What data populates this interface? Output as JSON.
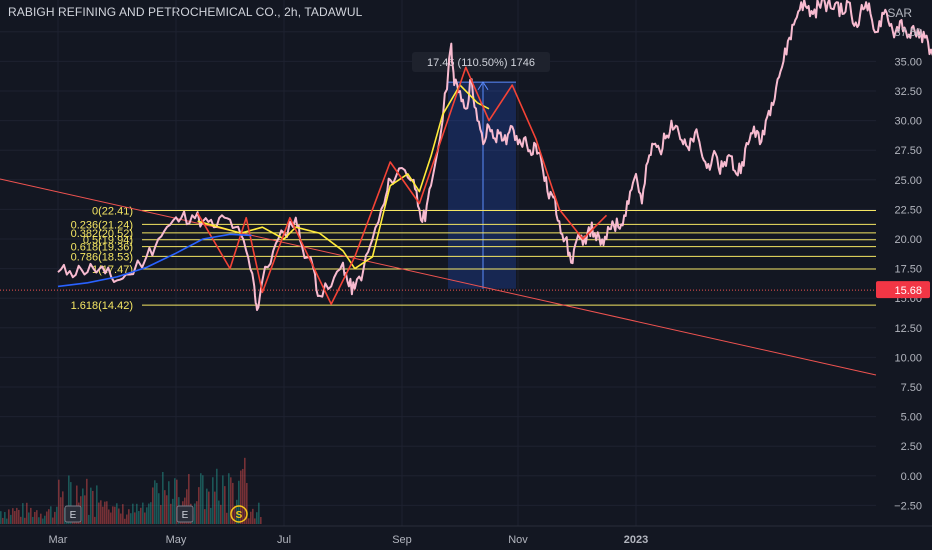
{
  "header": {
    "title": "RABIGH REFINING AND PETROCHEMICAL CO., 2h, TADAWUL",
    "currency": "SAR"
  },
  "chart_data": {
    "type": "line",
    "title": "RABIGH REFINING AND PETROCHEMICAL CO., 2h, TADAWUL",
    "ylabel": "SAR",
    "ylim": [
      -4.0,
      40.0
    ],
    "y_ticks": [
      "37.50",
      "35.00",
      "32.50",
      "30.00",
      "27.50",
      "25.00",
      "22.50",
      "20.00",
      "17.50",
      "15.00",
      "12.50",
      "10.00",
      "7.50",
      "5.00",
      "2.50",
      "0.00",
      "−2.50"
    ],
    "x_ticks": [
      "Mar",
      "May",
      "Jul",
      "Sep",
      "Nov",
      "2023"
    ],
    "last_price": "15.68",
    "measure_label": "17.46 (110.50%) 1746",
    "fib_levels": [
      {
        "label": "0(22.41)",
        "value": 22.41
      },
      {
        "label": "0.236(21.24)",
        "value": 21.24
      },
      {
        "label": "0.382(20.52)",
        "value": 20.52
      },
      {
        "label": "0.5(19.94)",
        "value": 19.94
      },
      {
        "label": "0.618(19.36)",
        "value": 19.36
      },
      {
        "label": "0.786(18.53)",
        "value": 18.53
      },
      {
        "label": "1(17.47)",
        "value": 17.47
      },
      {
        "label": "1.618(14.42)",
        "value": 14.42
      }
    ],
    "events": [
      "E",
      "E",
      "S"
    ],
    "series": [
      {
        "color": "#f8bbd0",
        "points": [
          [
            0.0,
            17.2
          ],
          [
            0.2,
            17.3
          ],
          [
            0.4,
            17.4
          ],
          [
            0.6,
            17.5
          ],
          [
            0.8,
            17.1
          ],
          [
            1.0,
            16.5
          ],
          [
            1.2,
            17.0
          ],
          [
            1.5,
            18.5
          ],
          [
            1.7,
            20.0
          ],
          [
            1.9,
            21.2
          ],
          [
            2.1,
            21.8
          ],
          [
            2.3,
            22.0
          ],
          [
            2.5,
            21.5
          ],
          [
            2.7,
            21.0
          ],
          [
            2.9,
            21.8
          ],
          [
            3.1,
            21.0
          ],
          [
            3.3,
            19.0
          ],
          [
            3.45,
            16.0
          ],
          [
            3.5,
            14.0
          ],
          [
            3.6,
            16.5
          ],
          [
            3.8,
            19.0
          ],
          [
            4.0,
            20.5
          ],
          [
            4.2,
            21.8
          ],
          [
            4.3,
            19.5
          ],
          [
            4.5,
            17.5
          ],
          [
            4.6,
            15.2
          ],
          [
            4.8,
            16.0
          ],
          [
            5.0,
            18.0
          ],
          [
            5.1,
            16.0
          ],
          [
            5.2,
            15.8
          ],
          [
            5.35,
            17.5
          ],
          [
            5.5,
            20.0
          ],
          [
            5.7,
            23.0
          ],
          [
            5.8,
            25.0
          ],
          [
            6.0,
            26.0
          ],
          [
            6.2,
            25.0
          ],
          [
            6.3,
            22.5
          ],
          [
            6.4,
            21.5
          ],
          [
            6.5,
            24.5
          ],
          [
            6.7,
            30.0
          ],
          [
            6.85,
            36.5
          ],
          [
            6.9,
            33.0
          ],
          [
            7.0,
            32.5
          ],
          [
            7.1,
            31.0
          ],
          [
            7.2,
            33.5
          ],
          [
            7.3,
            30.0
          ],
          [
            7.4,
            28.0
          ],
          [
            7.5,
            29.5
          ],
          [
            7.6,
            28.5
          ],
          [
            7.7,
            29.0
          ],
          [
            7.8,
            28.0
          ],
          [
            7.9,
            29.5
          ],
          [
            8.0,
            28.0
          ],
          [
            8.1,
            28.5
          ],
          [
            8.2,
            27.5
          ],
          [
            8.3,
            28.0
          ],
          [
            8.4,
            26.5
          ],
          [
            8.5,
            24.0
          ],
          [
            8.6,
            23.5
          ],
          [
            8.7,
            21.5
          ],
          [
            8.8,
            20.0
          ],
          [
            8.9,
            18.0
          ],
          [
            9.0,
            20.0
          ],
          [
            9.1,
            19.5
          ],
          [
            9.2,
            21.0
          ],
          [
            9.3,
            20.5
          ],
          [
            9.4,
            19.5
          ],
          [
            9.5,
            20.0
          ],
          [
            9.6,
            21.5
          ],
          [
            9.7,
            21.0
          ],
          [
            9.8,
            22.0
          ],
          [
            9.9,
            24.0
          ],
          [
            10.0,
            25.5
          ],
          [
            10.1,
            23.0
          ],
          [
            10.2,
            26.5
          ],
          [
            10.3,
            28.0
          ],
          [
            10.4,
            27.5
          ],
          [
            10.5,
            28.5
          ],
          [
            10.6,
            30.0
          ],
          [
            10.7,
            29.5
          ],
          [
            10.8,
            28.0
          ],
          [
            10.9,
            27.5
          ],
          [
            11.0,
            29.0
          ],
          [
            11.1,
            27.5
          ],
          [
            11.2,
            26.0
          ],
          [
            11.3,
            27.0
          ],
          [
            11.4,
            26.0
          ],
          [
            11.5,
            26.5
          ],
          [
            11.6,
            27.0
          ],
          [
            11.7,
            25.5
          ],
          [
            11.8,
            26.5
          ],
          [
            11.9,
            28.0
          ],
          [
            12.0,
            29.5
          ],
          [
            12.1,
            28.0
          ],
          [
            12.2,
            30.0
          ],
          [
            12.3,
            31.5
          ],
          [
            12.4,
            33.5
          ],
          [
            12.5,
            35.0
          ],
          [
            12.6,
            37.0
          ],
          [
            12.7,
            38.5
          ],
          [
            12.8,
            40.0
          ],
          [
            12.9,
            39.5
          ],
          [
            13.0,
            39.0
          ],
          [
            13.1,
            39.8
          ],
          [
            13.2,
            40.0
          ],
          [
            13.3,
            39.5
          ],
          [
            13.4,
            40.0
          ],
          [
            13.5,
            39.0
          ],
          [
            13.6,
            40.0
          ],
          [
            13.7,
            38.0
          ],
          [
            13.8,
            39.0
          ],
          [
            13.9,
            40.0
          ],
          [
            14.0,
            38.5
          ],
          [
            14.1,
            37.5
          ],
          [
            14.2,
            39.0
          ],
          [
            14.3,
            38.0
          ],
          [
            14.4,
            37.5
          ],
          [
            14.5,
            38.5
          ],
          [
            14.6,
            37.0
          ],
          [
            14.7,
            38.0
          ],
          [
            14.8,
            37.0
          ],
          [
            14.9,
            37.0
          ],
          [
            15.0,
            36.0
          ],
          [
            15.1,
            35.5
          ],
          [
            15.2,
            34.5
          ],
          [
            15.25,
            33.0
          ],
          [
            15.3,
            35.0
          ],
          [
            15.35,
            34.8
          ]
        ]
      },
      {
        "color": "#ffeb3b",
        "points": [
          [
            2.4,
            21.5
          ],
          [
            2.8,
            21.0
          ],
          [
            3.2,
            20.5
          ],
          [
            3.6,
            21.0
          ],
          [
            4.0,
            20.0
          ],
          [
            4.2,
            21.0
          ],
          [
            4.6,
            20.5
          ],
          [
            5.0,
            19.0
          ],
          [
            5.2,
            17.5
          ],
          [
            5.5,
            18.5
          ],
          [
            5.8,
            24.5
          ],
          [
            6.1,
            25.5
          ],
          [
            6.3,
            24.0
          ],
          [
            6.5,
            27.0
          ],
          [
            6.7,
            30.5
          ],
          [
            7.0,
            33.0
          ],
          [
            7.3,
            31.5
          ],
          [
            7.5,
            31.0
          ]
        ]
      },
      {
        "color": "#f44336",
        "points": [
          [
            2.4,
            22.2
          ],
          [
            3.0,
            17.5
          ],
          [
            3.3,
            21.8
          ],
          [
            3.6,
            15.5
          ],
          [
            4.1,
            21.8
          ],
          [
            4.8,
            14.5
          ],
          [
            5.2,
            18.5
          ],
          [
            5.8,
            26.5
          ],
          [
            6.3,
            23.0
          ],
          [
            7.1,
            34.5
          ],
          [
            7.5,
            30.0
          ],
          [
            7.9,
            33.0
          ],
          [
            8.3,
            28.5
          ],
          [
            8.7,
            22.5
          ],
          [
            9.1,
            20.0
          ],
          [
            9.5,
            22.0
          ]
        ]
      },
      {
        "color": "#2962ff",
        "points": [
          [
            0.0,
            16.0
          ],
          [
            0.5,
            16.3
          ],
          [
            1.0,
            16.8
          ],
          [
            1.5,
            17.6
          ],
          [
            2.0,
            18.8
          ],
          [
            2.5,
            20.0
          ],
          [
            3.0,
            20.4
          ],
          [
            3.4,
            20.3
          ]
        ]
      }
    ]
  }
}
